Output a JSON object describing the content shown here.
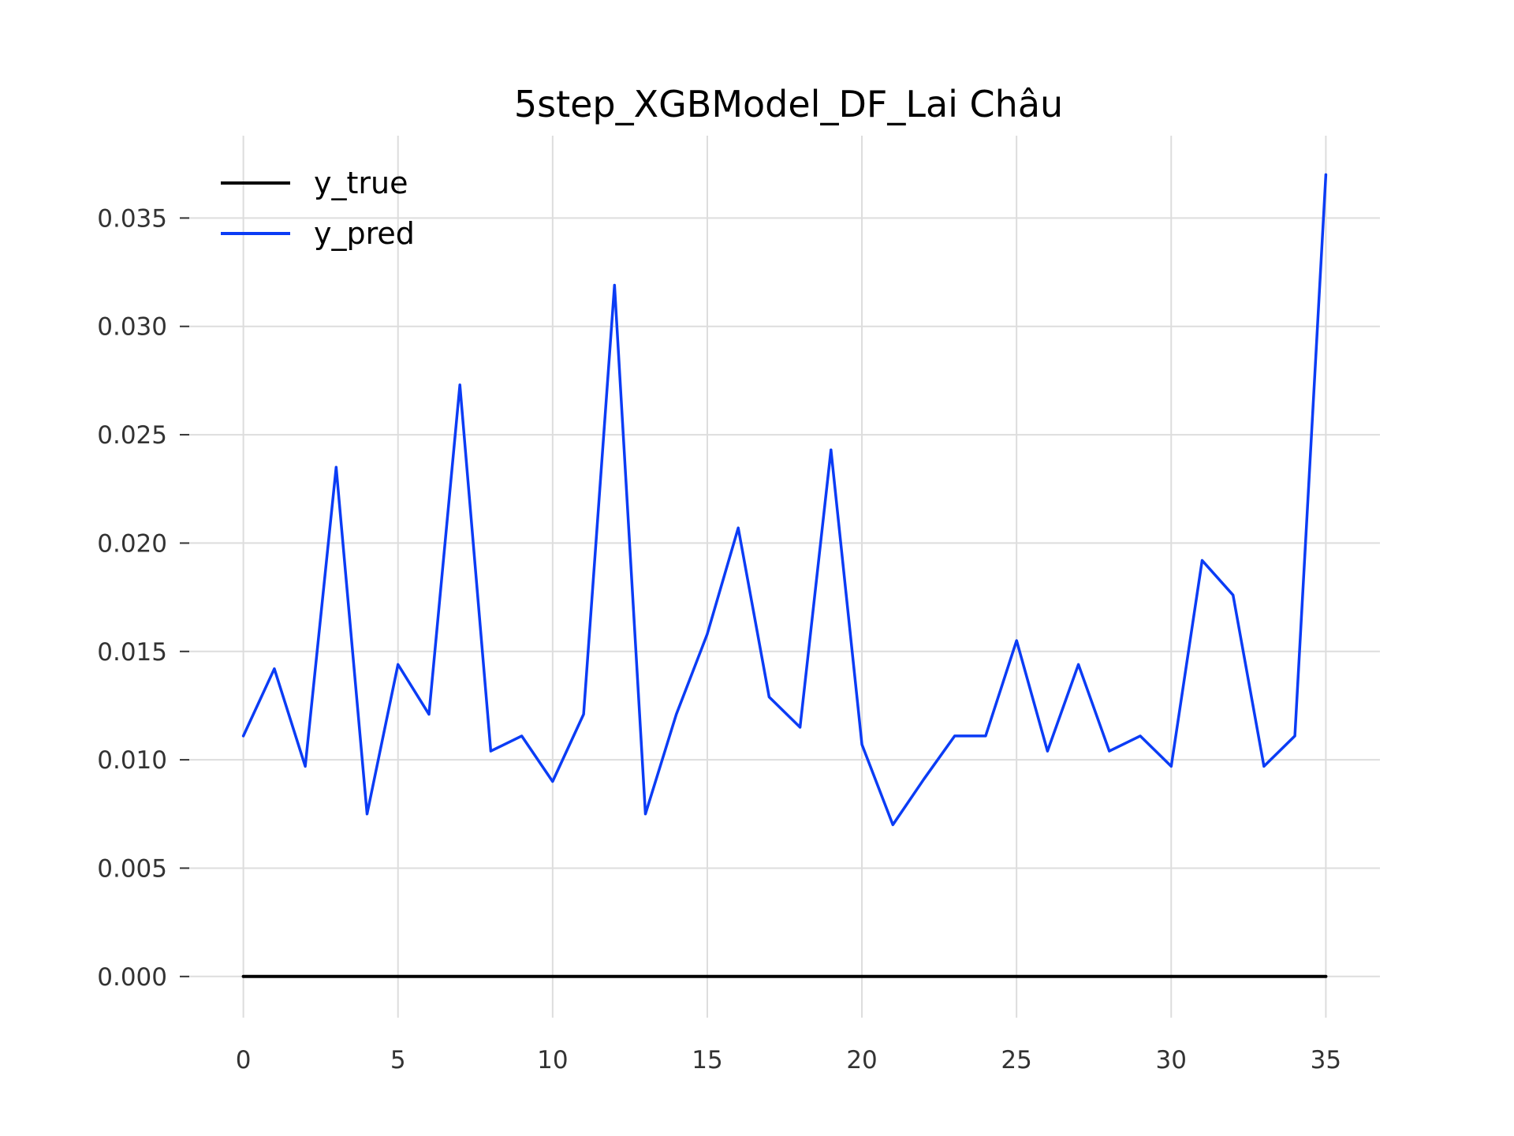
{
  "chart_data": {
    "type": "line",
    "title": "5step_XGBModel_DF_Lai Châu",
    "xlabel": "",
    "ylabel": "",
    "x": [
      0,
      1,
      2,
      3,
      4,
      5,
      6,
      7,
      8,
      9,
      10,
      11,
      12,
      13,
      14,
      15,
      16,
      17,
      18,
      19,
      20,
      21,
      22,
      23,
      24,
      25,
      26,
      27,
      28,
      29,
      30,
      31,
      32,
      33,
      34,
      35
    ],
    "series": [
      {
        "name": "y_true",
        "color": "#000000",
        "values": [
          0,
          0,
          0,
          0,
          0,
          0,
          0,
          0,
          0,
          0,
          0,
          0,
          0,
          0,
          0,
          0,
          0,
          0,
          0,
          0,
          0,
          0,
          0,
          0,
          0,
          0,
          0,
          0,
          0,
          0,
          0,
          0,
          0,
          0,
          0,
          0
        ]
      },
      {
        "name": "y_pred",
        "color": "#0b3cf5",
        "values": [
          0.0111,
          0.0142,
          0.0097,
          0.0235,
          0.0075,
          0.0144,
          0.0121,
          0.0273,
          0.0104,
          0.0111,
          0.009,
          0.0121,
          0.0319,
          0.0075,
          0.0121,
          0.0158,
          0.0207,
          0.0129,
          0.0115,
          0.0243,
          0.0107,
          0.007,
          0.0091,
          0.0111,
          0.0111,
          0.0155,
          0.0104,
          0.0144,
          0.0104,
          0.0111,
          0.0097,
          0.0192,
          0.0176,
          0.0097,
          0.0111,
          0.037
        ]
      }
    ],
    "xticks": [
      0,
      5,
      10,
      15,
      20,
      25,
      30,
      35
    ],
    "xtick_labels": [
      "0",
      "5",
      "10",
      "15",
      "20",
      "25",
      "30",
      "35"
    ],
    "yticks": [
      0.0,
      0.005,
      0.01,
      0.015,
      0.02,
      0.025,
      0.03,
      0.035
    ],
    "ytick_labels": [
      "0.000",
      "0.005",
      "0.010",
      "0.015",
      "0.020",
      "0.025",
      "0.030",
      "0.035"
    ],
    "xlim": [
      -1.75,
      36.75
    ],
    "ylim": [
      -0.0019,
      0.0388
    ],
    "grid": true,
    "grid_color": "#dddddd",
    "legend_position": "top-left"
  }
}
